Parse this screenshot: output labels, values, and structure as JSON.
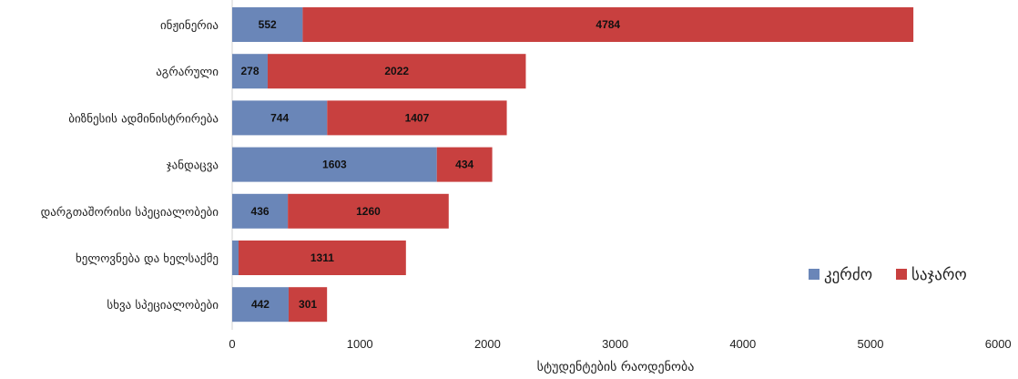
{
  "chart_data": {
    "type": "bar",
    "orientation": "horizontal",
    "stacked": true,
    "categories": [
      "ინჟინერია",
      "აგრარული",
      "ბიზნესის ადმინისტრირება",
      "ჯანდაცვა",
      "დარგთაშორისი  სპეციალობები",
      "ხელოვნება და ხელსაქმე",
      "სხვა სპეციალობები"
    ],
    "series": [
      {
        "name": "კერძო",
        "color": "#6a86b8",
        "values": [
          552,
          278,
          744,
          1603,
          436,
          50,
          442
        ],
        "labels": [
          "552",
          "278",
          "744",
          "1603",
          "436",
          "",
          "442"
        ]
      },
      {
        "name": "საჯარო",
        "color": "#c8403f",
        "values": [
          4784,
          2022,
          1407,
          434,
          1260,
          1311,
          301
        ],
        "labels": [
          "4784",
          "2022",
          "1407",
          "434",
          "1260",
          "1311",
          "301"
        ]
      }
    ],
    "xlabel": "სტუდენტების რაოდენობა",
    "xlim": [
      0,
      6000
    ],
    "xticks": [
      "0",
      "1000",
      "2000",
      "3000",
      "4000",
      "5000",
      "6000"
    ],
    "grid": false,
    "legend_position": "bottom-right"
  }
}
